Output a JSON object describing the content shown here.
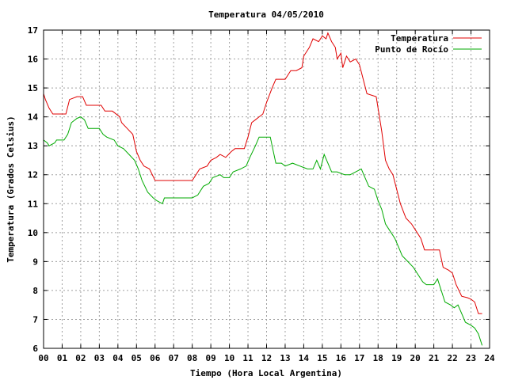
{
  "chart_data": {
    "type": "line",
    "title": "Temperatura 04/05/2010",
    "xlabel": "Tiempo (Hora Local Argentina)",
    "ylabel": "Temperatura (Grados Celsius)",
    "xlim": [
      0,
      24
    ],
    "ylim": [
      6,
      17
    ],
    "x_ticks": [
      "00",
      "01",
      "02",
      "03",
      "04",
      "05",
      "06",
      "07",
      "08",
      "09",
      "10",
      "11",
      "12",
      "13",
      "14",
      "15",
      "16",
      "17",
      "18",
      "19",
      "20",
      "21",
      "22",
      "23",
      "24"
    ],
    "y_ticks": [
      6,
      7,
      8,
      9,
      10,
      11,
      12,
      13,
      14,
      15,
      16,
      17
    ],
    "grid": true,
    "legend_position": "top-right",
    "series": [
      {
        "name": "Temperatura",
        "color": "#e00000",
        "points": [
          [
            0.0,
            14.8
          ],
          [
            0.1,
            14.6
          ],
          [
            0.3,
            14.3
          ],
          [
            0.5,
            14.1
          ],
          [
            1.2,
            14.1
          ],
          [
            1.4,
            14.6
          ],
          [
            1.8,
            14.7
          ],
          [
            2.1,
            14.7
          ],
          [
            2.3,
            14.4
          ],
          [
            3.1,
            14.4
          ],
          [
            3.3,
            14.2
          ],
          [
            3.7,
            14.2
          ],
          [
            4.1,
            14.0
          ],
          [
            4.2,
            13.8
          ],
          [
            4.5,
            13.6
          ],
          [
            4.8,
            13.4
          ],
          [
            5.0,
            12.8
          ],
          [
            5.2,
            12.5
          ],
          [
            5.4,
            12.3
          ],
          [
            5.7,
            12.2
          ],
          [
            6.0,
            11.8
          ],
          [
            6.5,
            11.8
          ],
          [
            8.0,
            11.8
          ],
          [
            8.2,
            12.0
          ],
          [
            8.4,
            12.2
          ],
          [
            8.8,
            12.3
          ],
          [
            9.0,
            12.5
          ],
          [
            9.3,
            12.6
          ],
          [
            9.5,
            12.7
          ],
          [
            9.8,
            12.6
          ],
          [
            10.1,
            12.8
          ],
          [
            10.3,
            12.9
          ],
          [
            10.5,
            12.9
          ],
          [
            10.8,
            12.9
          ],
          [
            11.0,
            13.3
          ],
          [
            11.2,
            13.8
          ],
          [
            11.4,
            13.9
          ],
          [
            11.6,
            14.0
          ],
          [
            11.8,
            14.1
          ],
          [
            12.0,
            14.5
          ],
          [
            12.3,
            15.0
          ],
          [
            12.5,
            15.3
          ],
          [
            13.0,
            15.3
          ],
          [
            13.3,
            15.6
          ],
          [
            13.6,
            15.6
          ],
          [
            13.9,
            15.7
          ],
          [
            14.0,
            16.1
          ],
          [
            14.3,
            16.4
          ],
          [
            14.5,
            16.7
          ],
          [
            14.8,
            16.6
          ],
          [
            15.0,
            16.8
          ],
          [
            15.2,
            16.7
          ],
          [
            15.3,
            16.9
          ],
          [
            15.5,
            16.6
          ],
          [
            15.7,
            16.4
          ],
          [
            15.8,
            16.0
          ],
          [
            16.0,
            16.2
          ],
          [
            16.1,
            15.7
          ],
          [
            16.3,
            16.1
          ],
          [
            16.5,
            15.9
          ],
          [
            16.8,
            16.0
          ],
          [
            17.0,
            15.8
          ],
          [
            17.2,
            15.3
          ],
          [
            17.4,
            14.8
          ],
          [
            17.9,
            14.7
          ],
          [
            18.2,
            13.5
          ],
          [
            18.4,
            12.5
          ],
          [
            18.6,
            12.2
          ],
          [
            18.8,
            12.0
          ],
          [
            19.0,
            11.5
          ],
          [
            19.2,
            11.0
          ],
          [
            19.5,
            10.5
          ],
          [
            19.8,
            10.3
          ],
          [
            20.0,
            10.1
          ],
          [
            20.3,
            9.8
          ],
          [
            20.5,
            9.4
          ],
          [
            21.3,
            9.4
          ],
          [
            21.5,
            8.8
          ],
          [
            21.8,
            8.7
          ],
          [
            22.0,
            8.6
          ],
          [
            22.2,
            8.2
          ],
          [
            22.5,
            7.8
          ],
          [
            22.8,
            7.75
          ],
          [
            23.0,
            7.7
          ],
          [
            23.2,
            7.6
          ],
          [
            23.4,
            7.2
          ],
          [
            23.6,
            7.2
          ]
        ]
      },
      {
        "name": "Punto de Rocío",
        "color": "#00aa00",
        "points": [
          [
            0.0,
            13.2
          ],
          [
            0.2,
            13.1
          ],
          [
            0.3,
            13.0
          ],
          [
            0.6,
            13.1
          ],
          [
            0.7,
            13.2
          ],
          [
            1.1,
            13.2
          ],
          [
            1.3,
            13.4
          ],
          [
            1.5,
            13.8
          ],
          [
            1.8,
            13.95
          ],
          [
            2.0,
            14.0
          ],
          [
            2.2,
            13.9
          ],
          [
            2.4,
            13.6
          ],
          [
            3.0,
            13.6
          ],
          [
            3.2,
            13.4
          ],
          [
            3.4,
            13.3
          ],
          [
            3.8,
            13.2
          ],
          [
            4.0,
            13.0
          ],
          [
            4.3,
            12.9
          ],
          [
            4.6,
            12.7
          ],
          [
            4.9,
            12.5
          ],
          [
            5.1,
            12.2
          ],
          [
            5.3,
            11.8
          ],
          [
            5.6,
            11.4
          ],
          [
            5.9,
            11.2
          ],
          [
            6.1,
            11.1
          ],
          [
            6.4,
            11.0
          ],
          [
            6.5,
            11.2
          ],
          [
            7.8,
            11.2
          ],
          [
            8.0,
            11.2
          ],
          [
            8.3,
            11.3
          ],
          [
            8.6,
            11.6
          ],
          [
            8.9,
            11.7
          ],
          [
            9.1,
            11.9
          ],
          [
            9.5,
            12.0
          ],
          [
            9.7,
            11.9
          ],
          [
            10.0,
            11.9
          ],
          [
            10.2,
            12.1
          ],
          [
            10.6,
            12.2
          ],
          [
            10.9,
            12.3
          ],
          [
            11.1,
            12.6
          ],
          [
            11.4,
            13.0
          ],
          [
            11.6,
            13.3
          ],
          [
            12.2,
            13.3
          ],
          [
            12.3,
            13.0
          ],
          [
            12.5,
            12.4
          ],
          [
            12.8,
            12.4
          ],
          [
            13.0,
            12.3
          ],
          [
            13.4,
            12.4
          ],
          [
            13.8,
            12.3
          ],
          [
            14.2,
            12.2
          ],
          [
            14.5,
            12.2
          ],
          [
            14.7,
            12.5
          ],
          [
            14.9,
            12.2
          ],
          [
            15.1,
            12.7
          ],
          [
            15.3,
            12.4
          ],
          [
            15.5,
            12.1
          ],
          [
            15.8,
            12.1
          ],
          [
            16.2,
            12.0
          ],
          [
            16.5,
            12.0
          ],
          [
            16.8,
            12.1
          ],
          [
            17.1,
            12.2
          ],
          [
            17.3,
            11.9
          ],
          [
            17.5,
            11.6
          ],
          [
            17.8,
            11.5
          ],
          [
            18.0,
            11.1
          ],
          [
            18.2,
            10.8
          ],
          [
            18.4,
            10.3
          ],
          [
            18.6,
            10.1
          ],
          [
            18.9,
            9.8
          ],
          [
            19.1,
            9.5
          ],
          [
            19.3,
            9.2
          ],
          [
            19.6,
            9.0
          ],
          [
            19.9,
            8.8
          ],
          [
            20.1,
            8.6
          ],
          [
            20.4,
            8.3
          ],
          [
            20.6,
            8.2
          ],
          [
            21.0,
            8.2
          ],
          [
            21.2,
            8.4
          ],
          [
            21.4,
            8.0
          ],
          [
            21.6,
            7.6
          ],
          [
            21.9,
            7.5
          ],
          [
            22.1,
            7.4
          ],
          [
            22.3,
            7.5
          ],
          [
            22.5,
            7.2
          ],
          [
            22.7,
            6.9
          ],
          [
            23.0,
            6.8
          ],
          [
            23.2,
            6.7
          ],
          [
            23.4,
            6.5
          ],
          [
            23.6,
            6.1
          ]
        ]
      }
    ]
  }
}
